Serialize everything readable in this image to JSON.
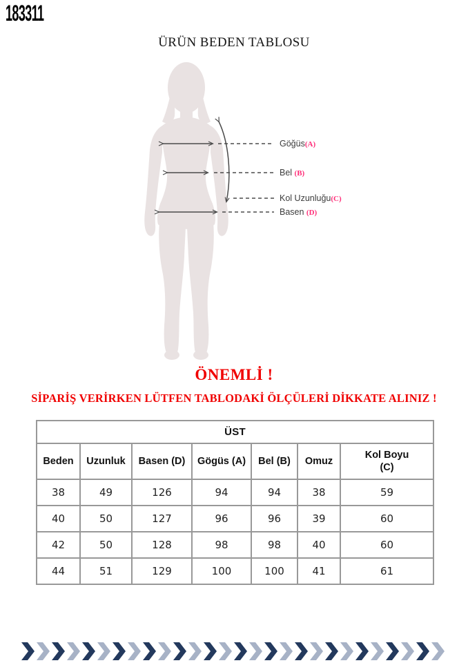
{
  "page": {
    "product_code": "183311",
    "title": "ÜRÜN BEDEN TABLOSU"
  },
  "diagram": {
    "silhouette_color": "#e9e2e2",
    "line_color": "#4a4a4a",
    "accent_color": "#ff2d78",
    "labels": [
      {
        "name": "Göğüs",
        "letter": "(A)"
      },
      {
        "name": "Bel ",
        "letter": "(B)"
      },
      {
        "name": "Kol Uzunluğu",
        "letter": "(C)"
      },
      {
        "name": "Basen ",
        "letter": "(D)"
      }
    ]
  },
  "notice": {
    "heading": "ÖNEMLİ !",
    "subheading": "SİPARİŞ VERİRKEN LÜTFEN TABLODAKİ ÖLÇÜLERİ DİKKATE ALINIZ !",
    "color": "#f00000"
  },
  "size_table": {
    "group_header": "ÜST",
    "columns": [
      "Beden",
      "Uzunluk",
      "Basen (D)",
      "Gögüs (A)",
      "Bel (B)",
      "Omuz",
      "Kol Boyu (C)"
    ],
    "rows": [
      [
        "38",
        "49",
        "126",
        "94",
        "94",
        "38",
        "59"
      ],
      [
        "40",
        "50",
        "127",
        "96",
        "96",
        "39",
        "60"
      ],
      [
        "42",
        "50",
        "128",
        "98",
        "98",
        "40",
        "60"
      ],
      [
        "44",
        "51",
        "129",
        "100",
        "100",
        "41",
        "61"
      ]
    ]
  },
  "footer": {
    "pattern": "chevron-ribbon",
    "chevron_count": 28,
    "dark_color": "#23395d",
    "light_color": "#a7b2c6"
  }
}
